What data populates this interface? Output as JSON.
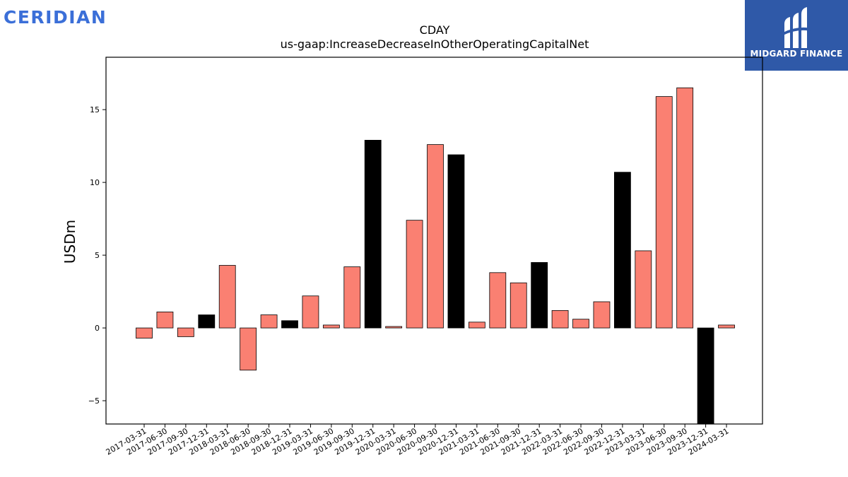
{
  "brand": {
    "left_logo": "CERIDIAN",
    "right_logo": "MIDGARD FINANCE",
    "right_logo_bg": "#2f59a8",
    "left_logo_color": "#3b6fd8"
  },
  "chart_data": {
    "type": "bar",
    "title": "CDAY",
    "subtitle": "us-gaap:IncreaseDecreaseInOtherOperatingCapitalNet",
    "xlabel": "",
    "ylabel": "USDm",
    "ylim": [
      -6.6,
      18.6
    ],
    "yticks": [
      -5,
      0,
      5,
      10,
      15
    ],
    "ytick_labels": [
      "−5",
      "0",
      "5",
      "10",
      "15"
    ],
    "grid": false,
    "colors": {
      "quarter": "#fa8072",
      "year_end": "#000000"
    },
    "categories": [
      "2017-03-31",
      "2017-06-30",
      "2017-09-30",
      "2017-12-31",
      "2018-03-31",
      "2018-06-30",
      "2018-09-30",
      "2018-12-31",
      "2019-03-31",
      "2019-06-30",
      "2019-09-30",
      "2019-12-31",
      "2020-03-31",
      "2020-06-30",
      "2020-09-30",
      "2020-12-31",
      "2021-03-31",
      "2021-06-30",
      "2021-09-30",
      "2021-12-31",
      "2022-03-31",
      "2022-06-30",
      "2022-09-30",
      "2022-12-31",
      "2023-03-31",
      "2023-06-30",
      "2023-09-30",
      "2023-12-31",
      "2024-03-31"
    ],
    "values": [
      -0.7,
      1.1,
      -0.6,
      0.9,
      4.3,
      -2.9,
      0.9,
      0.5,
      2.2,
      0.2,
      4.2,
      12.9,
      0.1,
      7.4,
      12.6,
      11.9,
      0.4,
      3.8,
      3.1,
      4.5,
      1.2,
      0.6,
      1.8,
      10.7,
      5.3,
      15.9,
      16.5,
      -7.5,
      0.2
    ]
  }
}
